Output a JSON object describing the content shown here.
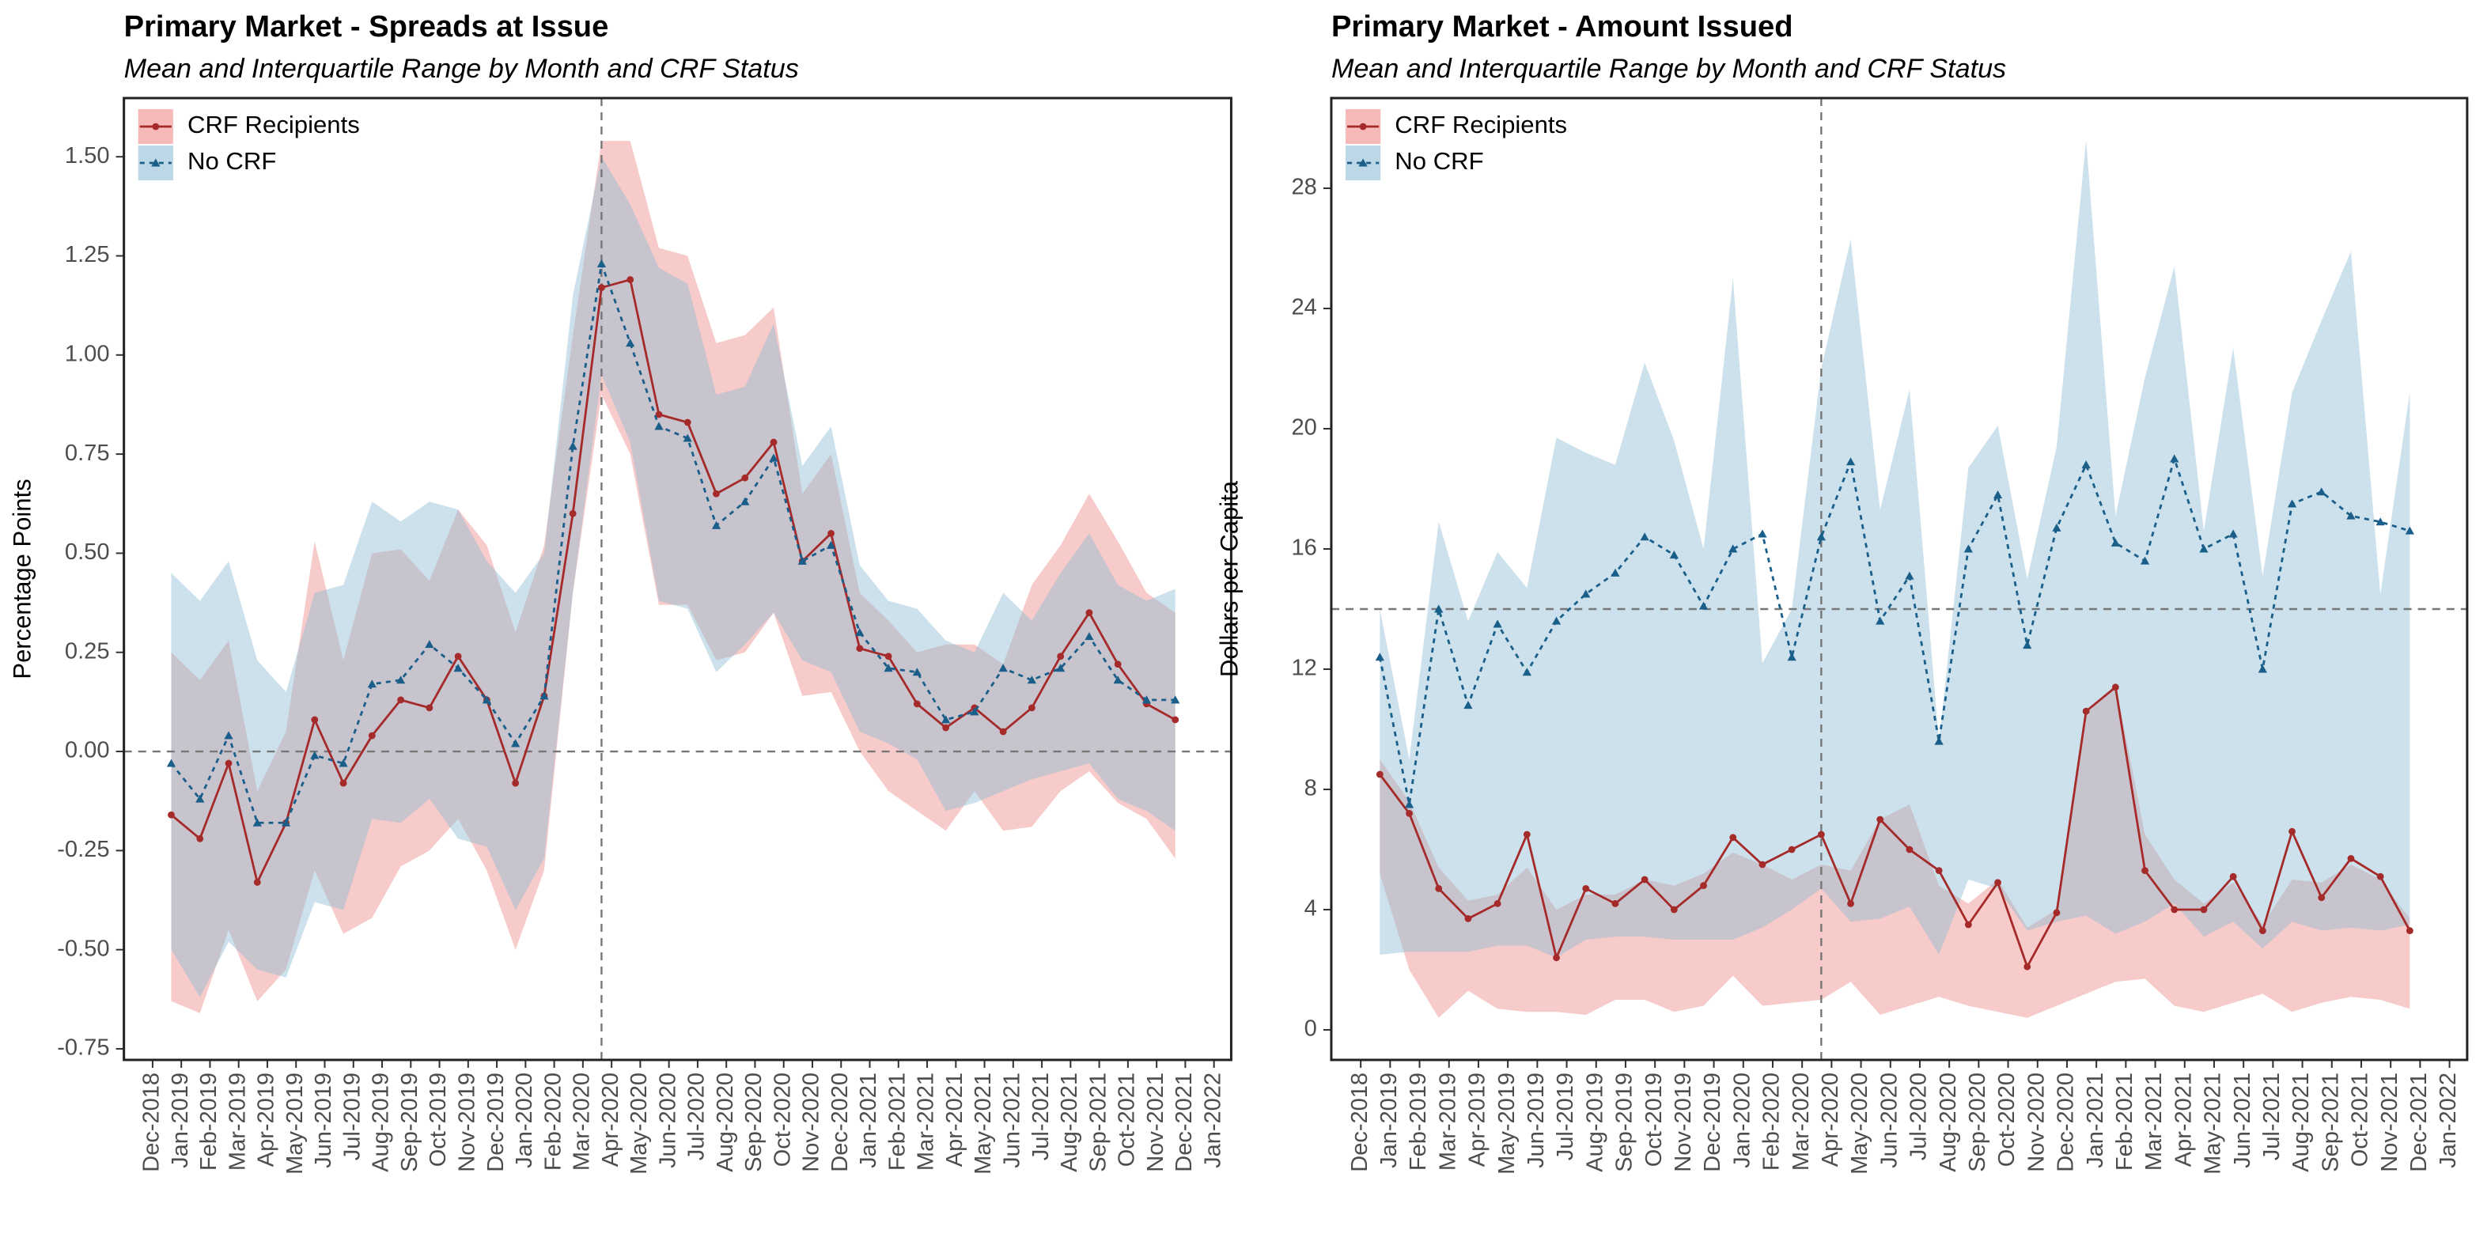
{
  "chart_data": [
    {
      "type": "line",
      "title": "Primary Market - Spreads at Issue",
      "subtitle": "Mean and Interquartile Range by Month and CRF Status",
      "ylabel": "Percentage Points",
      "x": [
        "Jan-2019",
        "Feb-2019",
        "Mar-2019",
        "Apr-2019",
        "May-2019",
        "Jun-2019",
        "Jul-2019",
        "Aug-2019",
        "Sep-2019",
        "Oct-2019",
        "Nov-2019",
        "Dec-2019",
        "Jan-2020",
        "Feb-2020",
        "Mar-2020",
        "Apr-2020",
        "May-2020",
        "Jun-2020",
        "Jul-2020",
        "Aug-2020",
        "Sep-2020",
        "Oct-2020",
        "Nov-2020",
        "Dec-2020",
        "Jan-2021",
        "Feb-2021",
        "Mar-2021",
        "Apr-2021",
        "May-2021",
        "Jun-2021",
        "Jul-2021",
        "Aug-2021",
        "Sep-2021",
        "Oct-2021",
        "Nov-2021",
        "Dec-2021"
      ],
      "xticks": [
        "Dec-2018",
        "Jan-2019",
        "Feb-2019",
        "Mar-2019",
        "Apr-2019",
        "May-2019",
        "Jun-2019",
        "Jul-2019",
        "Aug-2019",
        "Sep-2019",
        "Oct-2019",
        "Nov-2019",
        "Dec-2019",
        "Jan-2020",
        "Feb-2020",
        "Mar-2020",
        "Apr-2020",
        "May-2020",
        "Jun-2020",
        "Jul-2020",
        "Aug-2020",
        "Sep-2020",
        "Oct-2020",
        "Nov-2020",
        "Dec-2020",
        "Jan-2021",
        "Feb-2021",
        "Mar-2021",
        "Apr-2021",
        "May-2021",
        "Jun-2021",
        "Jul-2021",
        "Aug-2021",
        "Sep-2021",
        "Oct-2021",
        "Nov-2021",
        "Dec-2021",
        "Jan-2022"
      ],
      "ylim": [
        -0.778,
        1.648
      ],
      "yticks": [
        {
          "value": -0.75,
          "label": "-0.75"
        },
        {
          "value": -0.5,
          "label": "-0.50"
        },
        {
          "value": -0.25,
          "label": "-0.25"
        },
        {
          "value": 0,
          "label": "0.00"
        },
        {
          "value": 0.25,
          "label": "0.25"
        },
        {
          "value": 0.5,
          "label": "0.50"
        },
        {
          "value": 0.75,
          "label": "0.75"
        },
        {
          "value": 1,
          "label": "1.00"
        },
        {
          "value": 1.25,
          "label": "1.25"
        },
        {
          "value": 1.5,
          "label": "1.50"
        }
      ],
      "hline": 0,
      "vline": "Apr-2020",
      "legend": "upper left",
      "series": [
        {
          "name": "CRF Recipients",
          "color": "#a52a2a",
          "band_color": "#f08c8c",
          "linestyle": "solid",
          "marker": "circle",
          "values": [
            -0.16,
            -0.22,
            -0.03,
            -0.33,
            -0.18,
            0.08,
            -0.08,
            0.04,
            0.13,
            0.11,
            0.24,
            0.13,
            -0.08,
            0.14,
            0.6,
            1.17,
            1.19,
            0.85,
            0.83,
            0.65,
            0.69,
            0.78,
            0.48,
            0.55,
            0.26,
            0.24,
            0.12,
            0.06,
            0.11,
            0.05,
            0.11,
            0.24,
            0.35,
            0.22,
            0.12,
            0.08
          ],
          "lower": [
            -0.63,
            -0.66,
            -0.45,
            -0.63,
            -0.55,
            -0.3,
            -0.46,
            -0.42,
            -0.29,
            -0.25,
            -0.17,
            -0.3,
            -0.5,
            -0.3,
            0.4,
            0.9,
            0.75,
            0.37,
            0.37,
            0.23,
            0.25,
            0.35,
            0.14,
            0.15,
            0.0,
            -0.1,
            -0.15,
            -0.2,
            -0.1,
            -0.2,
            -0.19,
            -0.1,
            -0.05,
            -0.13,
            -0.17,
            -0.27
          ],
          "upper": [
            0.25,
            0.18,
            0.28,
            -0.1,
            0.05,
            0.53,
            0.23,
            0.5,
            0.51,
            0.43,
            0.61,
            0.52,
            0.3,
            0.52,
            1.05,
            1.54,
            1.54,
            1.27,
            1.25,
            1.03,
            1.05,
            1.12,
            0.65,
            0.75,
            0.4,
            0.33,
            0.25,
            0.27,
            0.27,
            0.22,
            0.42,
            0.52,
            0.65,
            0.53,
            0.4,
            0.35
          ]
        },
        {
          "name": "No CRF",
          "color": "#1a5e8a",
          "band_color": "#8fbdd3",
          "linestyle": "dotted",
          "marker": "triangle",
          "values": [
            -0.03,
            -0.12,
            0.04,
            -0.18,
            -0.18,
            -0.01,
            -0.03,
            0.17,
            0.18,
            0.27,
            0.21,
            0.13,
            0.02,
            0.14,
            0.77,
            1.23,
            1.03,
            0.82,
            0.79,
            0.57,
            0.63,
            0.74,
            0.48,
            0.52,
            0.3,
            0.21,
            0.2,
            0.08,
            0.1,
            0.21,
            0.18,
            0.21,
            0.29,
            0.18,
            0.13,
            0.13
          ],
          "lower": [
            -0.5,
            -0.62,
            -0.48,
            -0.55,
            -0.57,
            -0.38,
            -0.4,
            -0.17,
            -0.18,
            -0.12,
            -0.22,
            -0.24,
            -0.4,
            -0.27,
            0.4,
            0.95,
            0.78,
            0.38,
            0.36,
            0.2,
            0.27,
            0.35,
            0.23,
            0.2,
            0.05,
            0.02,
            -0.02,
            -0.15,
            -0.13,
            -0.1,
            -0.07,
            -0.05,
            -0.03,
            -0.12,
            -0.15,
            -0.2
          ],
          "upper": [
            0.45,
            0.38,
            0.48,
            0.23,
            0.15,
            0.4,
            0.42,
            0.63,
            0.58,
            0.63,
            0.61,
            0.48,
            0.4,
            0.5,
            1.15,
            1.5,
            1.38,
            1.22,
            1.18,
            0.9,
            0.92,
            1.08,
            0.72,
            0.82,
            0.47,
            0.38,
            0.36,
            0.28,
            0.25,
            0.4,
            0.33,
            0.45,
            0.55,
            0.42,
            0.38,
            0.41
          ]
        }
      ]
    },
    {
      "type": "line",
      "title": "Primary Market - Amount Issued",
      "subtitle": "Mean and Interquartile Range by Month and CRF Status",
      "ylabel": "Dollars per Capita",
      "x": [
        "Jan-2019",
        "Feb-2019",
        "Mar-2019",
        "Apr-2019",
        "May-2019",
        "Jun-2019",
        "Jul-2019",
        "Aug-2019",
        "Sep-2019",
        "Oct-2019",
        "Nov-2019",
        "Dec-2019",
        "Jan-2020",
        "Feb-2020",
        "Mar-2020",
        "Apr-2020",
        "May-2020",
        "Jun-2020",
        "Jul-2020",
        "Aug-2020",
        "Sep-2020",
        "Oct-2020",
        "Nov-2020",
        "Dec-2020",
        "Jan-2021",
        "Feb-2021",
        "Mar-2021",
        "Apr-2021",
        "May-2021",
        "Jun-2021",
        "Jul-2021",
        "Aug-2021",
        "Sep-2021",
        "Oct-2021",
        "Nov-2021",
        "Dec-2021"
      ],
      "xticks": [
        "Dec-2018",
        "Jan-2019",
        "Feb-2019",
        "Mar-2019",
        "Apr-2019",
        "May-2019",
        "Jun-2019",
        "Jul-2019",
        "Aug-2019",
        "Sep-2019",
        "Oct-2019",
        "Nov-2019",
        "Dec-2019",
        "Jan-2020",
        "Feb-2020",
        "Mar-2020",
        "Apr-2020",
        "May-2020",
        "Jun-2020",
        "Jul-2020",
        "Aug-2020",
        "Sep-2020",
        "Oct-2020",
        "Nov-2020",
        "Dec-2020",
        "Jan-2021",
        "Feb-2021",
        "Mar-2021",
        "Apr-2021",
        "May-2021",
        "Jun-2021",
        "Jul-2021",
        "Aug-2021",
        "Sep-2021",
        "Oct-2021",
        "Nov-2021",
        "Dec-2021",
        "Jan-2022"
      ],
      "ylim": [
        -1,
        31
      ],
      "yticks": [
        0,
        4,
        8,
        12,
        16,
        20,
        24,
        28
      ],
      "hline": 14,
      "vline": "Apr-2020",
      "legend": "upper left",
      "series": [
        {
          "name": "CRF Recipients",
          "color": "#a52a2a",
          "band_color": "#f08c8c",
          "linestyle": "solid",
          "marker": "circle",
          "values": [
            8.5,
            7.2,
            4.7,
            3.7,
            4.2,
            6.5,
            2.4,
            4.7,
            4.2,
            5.0,
            4.0,
            4.8,
            6.4,
            5.5,
            6.0,
            6.5,
            4.2,
            7.0,
            6.0,
            5.3,
            3.5,
            4.9,
            2.1,
            3.9,
            10.6,
            11.4,
            5.3,
            4.0,
            4.0,
            5.1,
            3.3,
            6.6,
            4.4,
            5.7,
            5.1,
            3.3
          ],
          "lower": [
            5.2,
            2.0,
            0.4,
            1.3,
            0.7,
            0.6,
            0.6,
            0.5,
            1.0,
            1.0,
            0.6,
            0.8,
            1.8,
            0.8,
            0.9,
            1.0,
            1.6,
            0.5,
            0.8,
            1.1,
            0.8,
            0.6,
            0.4,
            0.8,
            1.2,
            1.6,
            1.7,
            0.8,
            0.6,
            0.9,
            1.2,
            0.6,
            0.9,
            1.1,
            1.0,
            0.7
          ],
          "upper": [
            9.0,
            7.6,
            5.4,
            4.3,
            4.5,
            5.4,
            4.0,
            4.5,
            4.5,
            5.0,
            4.8,
            5.2,
            5.9,
            5.5,
            5.0,
            5.5,
            5.3,
            7.0,
            7.5,
            4.8,
            4.2,
            5.0,
            3.4,
            4.0,
            10.5,
            11.5,
            6.5,
            5.0,
            4.2,
            4.9,
            3.5,
            5.0,
            4.9,
            5.5,
            5.0,
            3.7
          ]
        },
        {
          "name": "No CRF",
          "color": "#1a5e8a",
          "band_color": "#8fbdd3",
          "linestyle": "dotted",
          "marker": "triangle",
          "values": [
            12.4,
            7.5,
            14.0,
            10.8,
            13.5,
            11.9,
            13.6,
            14.5,
            15.2,
            16.4,
            15.8,
            14.1,
            16.0,
            16.5,
            12.4,
            16.4,
            18.9,
            13.6,
            15.1,
            9.6,
            16.0,
            17.8,
            12.8,
            16.7,
            18.8,
            16.2,
            15.6,
            19.0,
            16.0,
            16.5,
            12.0,
            17.5,
            17.9,
            17.1,
            16.9,
            16.6
          ],
          "lower": [
            2.5,
            2.6,
            2.6,
            2.6,
            2.8,
            2.8,
            2.4,
            3.0,
            3.1,
            3.1,
            3.0,
            3.0,
            3.0,
            3.4,
            4.0,
            4.7,
            3.6,
            3.7,
            4.1,
            2.5,
            5.0,
            4.7,
            3.3,
            3.6,
            3.8,
            3.2,
            3.6,
            4.2,
            3.1,
            3.6,
            2.7,
            3.6,
            3.3,
            3.4,
            3.3,
            3.5
          ],
          "upper": [
            14.0,
            9.0,
            16.9,
            13.6,
            15.9,
            14.7,
            19.7,
            19.2,
            18.8,
            22.2,
            19.6,
            16.0,
            25.0,
            12.2,
            14.0,
            22.0,
            26.3,
            17.3,
            21.3,
            9.6,
            18.7,
            20.1,
            15.0,
            19.4,
            29.6,
            17.1,
            21.7,
            25.4,
            16.6,
            22.7,
            15.1,
            21.2,
            23.6,
            25.9,
            14.5,
            21.2
          ]
        }
      ]
    }
  ]
}
